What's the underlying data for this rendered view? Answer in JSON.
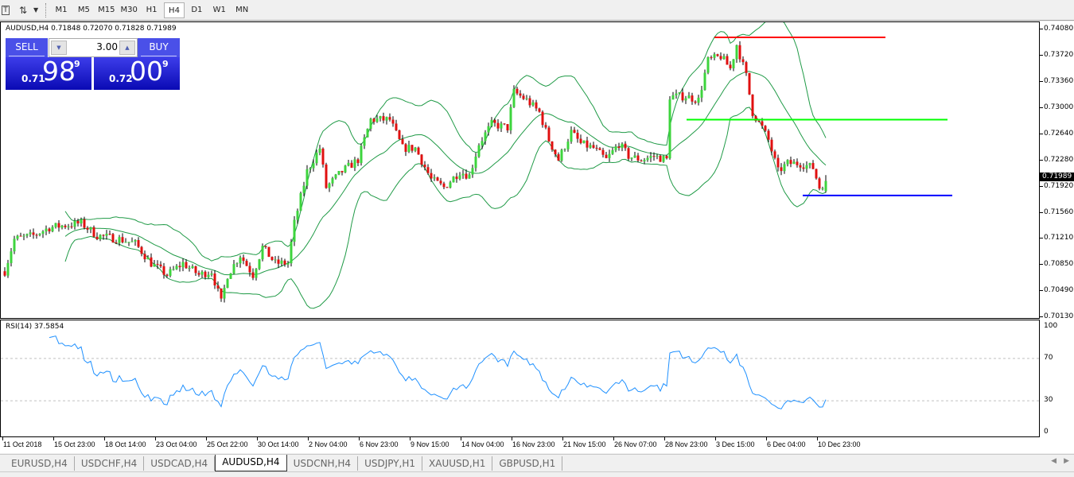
{
  "toolbar": {
    "icons": [
      "text-icon",
      "arrows-icon",
      "dropdown-icon"
    ],
    "timeframes": [
      "M1",
      "M5",
      "M15",
      "M30",
      "H1",
      "H4",
      "D1",
      "W1",
      "MN"
    ],
    "active_timeframe": "H4"
  },
  "chart": {
    "title": "AUDUSD,H4  0.71848 0.72070 0.71828 0.71989",
    "trade_panel": {
      "sell_label": "SELL",
      "buy_label": "BUY",
      "lot": "3.00",
      "sell_prefix": "0.71",
      "sell_big": "98",
      "sell_sup": "9",
      "buy_prefix": "0.72",
      "buy_big": "00",
      "buy_sup": "9"
    },
    "price_labels": [
      "0.74080",
      "0.73720",
      "0.73360",
      "0.73000",
      "0.72640",
      "0.72280",
      "0.71920",
      "0.71560",
      "0.71210",
      "0.70850",
      "0.70490",
      "0.70130"
    ],
    "current_price": "0.71989",
    "colors": {
      "bull": "#3dd43d",
      "bear": "#e01010",
      "bands": "#1f9a46",
      "rsi": "#1e90ff",
      "hline_red": "#ff0000",
      "hline_green": "#00ff00",
      "hline_blue": "#0000ff"
    }
  },
  "chart_data": {
    "type": "candlestick",
    "symbol": "AUDUSD",
    "timeframe": "H4",
    "ylim": [
      0.7013,
      0.7408
    ],
    "last_bar": {
      "open": 0.71848,
      "high": 0.7207,
      "low": 0.71828,
      "close": 0.71989
    },
    "approx_close_path": [
      [
        0,
        0.7075
      ],
      [
        3,
        0.7119
      ],
      [
        9,
        0.7124
      ],
      [
        14,
        0.7135
      ],
      [
        24,
        0.7141
      ],
      [
        29,
        0.7124
      ],
      [
        36,
        0.7119
      ],
      [
        41,
        0.7113
      ],
      [
        46,
        0.7086
      ],
      [
        51,
        0.707
      ],
      [
        56,
        0.7086
      ],
      [
        61,
        0.707
      ],
      [
        65,
        0.7075
      ],
      [
        68,
        0.7032
      ],
      [
        70,
        0.707
      ],
      [
        74,
        0.7097
      ],
      [
        78,
        0.707
      ],
      [
        81,
        0.7108
      ],
      [
        85,
        0.7086
      ],
      [
        89,
        0.7086
      ],
      [
        91,
        0.7141
      ],
      [
        95,
        0.7212
      ],
      [
        99,
        0.7244
      ],
      [
        101,
        0.719
      ],
      [
        106,
        0.7212
      ],
      [
        111,
        0.7228
      ],
      [
        115,
        0.7283
      ],
      [
        121,
        0.7283
      ],
      [
        125,
        0.7244
      ],
      [
        129,
        0.7244
      ],
      [
        134,
        0.7201
      ],
      [
        138,
        0.719
      ],
      [
        143,
        0.7212
      ],
      [
        146,
        0.7206
      ],
      [
        149,
        0.725
      ],
      [
        153,
        0.7277
      ],
      [
        158,
        0.7272
      ],
      [
        160,
        0.7321
      ],
      [
        164,
        0.731
      ],
      [
        168,
        0.7293
      ],
      [
        171,
        0.7255
      ],
      [
        174,
        0.7228
      ],
      [
        178,
        0.7266
      ],
      [
        181,
        0.725
      ],
      [
        185,
        0.7244
      ],
      [
        189,
        0.7228
      ],
      [
        193,
        0.725
      ],
      [
        196,
        0.7233
      ],
      [
        200,
        0.7228
      ],
      [
        204,
        0.7233
      ],
      [
        208,
        0.7228
      ],
      [
        209,
        0.7315
      ],
      [
        214,
        0.7315
      ],
      [
        218,
        0.731
      ],
      [
        221,
        0.7364
      ],
      [
        225,
        0.737
      ],
      [
        228,
        0.7353
      ],
      [
        230,
        0.7386
      ],
      [
        233,
        0.7343
      ],
      [
        235,
        0.7293
      ],
      [
        238,
        0.7272
      ],
      [
        240,
        0.7255
      ],
      [
        243,
        0.7212
      ],
      [
        246,
        0.7223
      ],
      [
        250,
        0.7223
      ],
      [
        254,
        0.7217
      ],
      [
        256,
        0.719
      ],
      [
        258,
        0.71989
      ]
    ],
    "indicators": [
      "Bollinger Bands",
      "RSI(14)"
    ],
    "horizontal_lines": [
      {
        "price": 0.7396,
        "color": "red"
      },
      {
        "price": 0.7283,
        "color": "green"
      },
      {
        "price": 0.7179,
        "color": "blue"
      }
    ],
    "x_tick_labels": [
      "11 Oct 2018",
      "15 Oct 23:00",
      "18 Oct 14:00",
      "23 Oct 04:00",
      "25 Oct 22:00",
      "30 Oct 14:00",
      "2 Nov 04:00",
      "6 Nov 23:00",
      "9 Nov 15:00",
      "14 Nov 04:00",
      "16 Nov 23:00",
      "21 Nov 15:00",
      "26 Nov 07:00",
      "28 Nov 23:00",
      "3 Dec 15:00",
      "6 Dec 04:00",
      "10 Dec 23:00"
    ]
  },
  "rsi": {
    "label": "RSI(14) 37.5854",
    "levels": [
      "100",
      "70",
      "30",
      "0"
    ],
    "ylim": [
      0,
      100
    ],
    "dashed_levels": [
      70,
      30
    ]
  },
  "tabs": [
    {
      "label": "EURUSD,H4"
    },
    {
      "label": "USDCHF,H4"
    },
    {
      "label": "USDCAD,H4"
    },
    {
      "label": "AUDUSD,H4",
      "active": true
    },
    {
      "label": "USDCNH,H4"
    },
    {
      "label": "USDJPY,H1"
    },
    {
      "label": "XAUUSD,H1"
    },
    {
      "label": "GBPUSD,H1"
    }
  ]
}
